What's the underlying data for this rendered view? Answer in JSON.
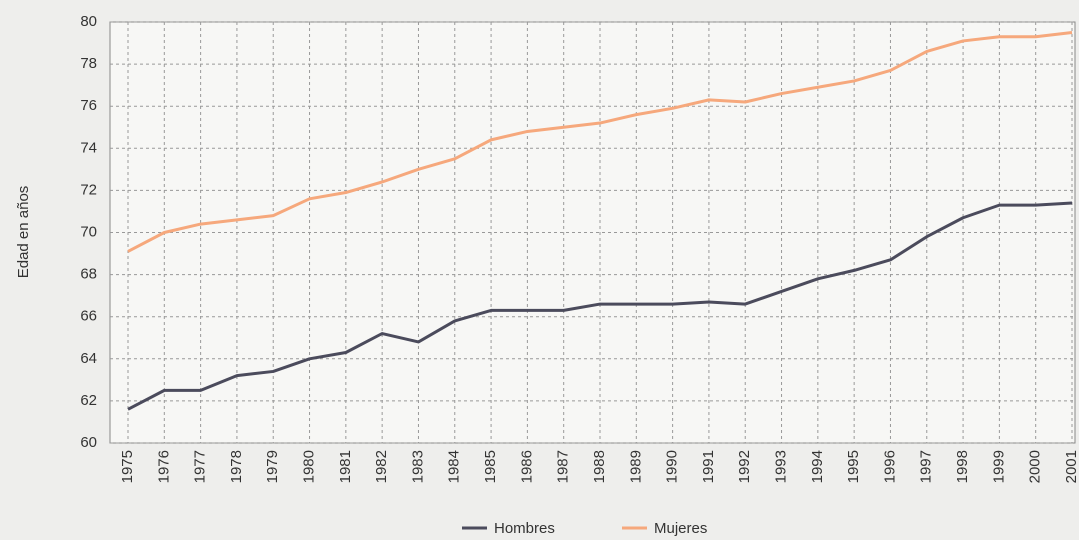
{
  "chart_data": {
    "type": "line",
    "y_label": "Edad en años",
    "categories": [
      "1975",
      "1976",
      "1977",
      "1978",
      "1979",
      "1980",
      "1981",
      "1982",
      "1983",
      "1984",
      "1985",
      "1986",
      "1987",
      "1988",
      "1989",
      "1990",
      "1991",
      "1992",
      "1993",
      "1994",
      "1995",
      "1996",
      "1997",
      "1998",
      "1999",
      "2000",
      "2001"
    ],
    "series": [
      {
        "name": "Hombres",
        "color": "#4b4b5c",
        "values": [
          61.6,
          62.5,
          62.5,
          63.2,
          63.4,
          64.0,
          64.3,
          65.2,
          64.8,
          65.8,
          66.3,
          66.3,
          66.3,
          66.6,
          66.6,
          66.6,
          66.7,
          66.6,
          67.2,
          67.8,
          68.2,
          68.7,
          69.8,
          70.7,
          71.3,
          71.3,
          71.4
        ]
      },
      {
        "name": "Mujeres",
        "color": "#f6a87c",
        "values": [
          69.1,
          70.0,
          70.4,
          70.6,
          70.8,
          71.6,
          71.9,
          72.4,
          73.0,
          73.5,
          74.4,
          74.8,
          75.0,
          75.2,
          75.6,
          75.9,
          76.3,
          76.2,
          76.6,
          76.9,
          77.2,
          77.7,
          78.6,
          79.1,
          79.3,
          79.3,
          79.5
        ]
      }
    ],
    "ylim": [
      60,
      80
    ],
    "yticks": [
      60,
      62,
      64,
      66,
      68,
      70,
      72,
      74,
      76,
      78,
      80
    ],
    "grid": true,
    "legend": "bottom"
  }
}
